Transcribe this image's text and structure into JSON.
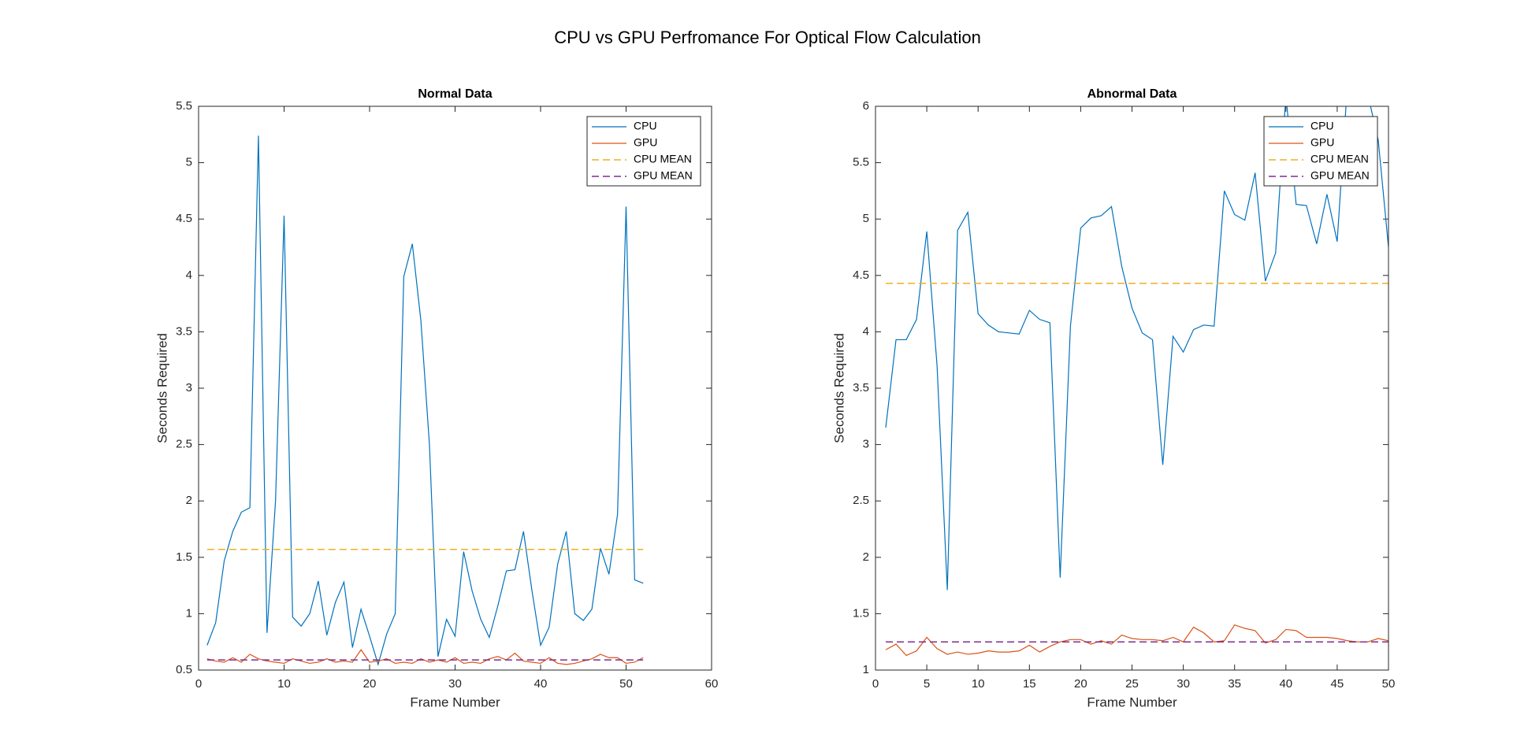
{
  "title": "CPU vs GPU Perfromance For Optical Flow Calculation",
  "chart_data": [
    {
      "type": "line",
      "title": "Normal Data",
      "xlabel": "Frame Number",
      "ylabel": "Seconds Required",
      "x": [
        1,
        2,
        3,
        4,
        5,
        6,
        7,
        8,
        9,
        10,
        11,
        12,
        13,
        14,
        15,
        16,
        17,
        18,
        19,
        20,
        21,
        22,
        23,
        24,
        25,
        26,
        27,
        28,
        29,
        30,
        31,
        32,
        33,
        34,
        35,
        36,
        37,
        38,
        39,
        40,
        41,
        42,
        43,
        44,
        45,
        46,
        47,
        48,
        49,
        50,
        51,
        52
      ],
      "xlim": [
        0,
        60
      ],
      "xticks": [
        0,
        10,
        20,
        30,
        40,
        50,
        60
      ],
      "ylim": [
        0.5,
        5.5
      ],
      "yticks": [
        0.5,
        1,
        1.5,
        2,
        2.5,
        3,
        3.5,
        4,
        4.5,
        5,
        5.5
      ],
      "legend": "upper right",
      "series": [
        {
          "name": "CPU",
          "color": "#0072BD",
          "style": "solid",
          "values": [
            0.72,
            0.92,
            1.47,
            1.73,
            1.9,
            1.94,
            5.24,
            0.83,
            2.0,
            4.53,
            0.97,
            0.89,
            1.0,
            1.29,
            0.81,
            1.1,
            1.28,
            0.7,
            1.04,
            0.8,
            0.55,
            0.82,
            1.0,
            3.99,
            4.28,
            3.6,
            2.5,
            0.62,
            0.95,
            0.8,
            1.55,
            1.2,
            0.95,
            0.79,
            1.07,
            1.38,
            1.39,
            1.73,
            1.2,
            0.72,
            0.88,
            1.44,
            1.73,
            1.0,
            0.94,
            1.04,
            1.58,
            1.35,
            1.88,
            4.61,
            1.3,
            1.27
          ]
        },
        {
          "name": "GPU",
          "color": "#D95319",
          "style": "solid",
          "values": [
            0.6,
            0.58,
            0.57,
            0.61,
            0.57,
            0.64,
            0.6,
            0.58,
            0.57,
            0.56,
            0.6,
            0.58,
            0.56,
            0.57,
            0.6,
            0.57,
            0.58,
            0.57,
            0.68,
            0.57,
            0.58,
            0.6,
            0.56,
            0.57,
            0.56,
            0.6,
            0.57,
            0.59,
            0.57,
            0.61,
            0.56,
            0.57,
            0.56,
            0.6,
            0.62,
            0.59,
            0.65,
            0.58,
            0.57,
            0.56,
            0.61,
            0.56,
            0.55,
            0.56,
            0.58,
            0.6,
            0.64,
            0.61,
            0.61,
            0.56,
            0.57,
            0.61
          ]
        },
        {
          "name": "CPU MEAN",
          "color": "#EDB120",
          "style": "dashed",
          "x": [
            1,
            52
          ],
          "values": [
            1.57,
            1.57
          ]
        },
        {
          "name": "GPU MEAN",
          "color": "#7E2F8E",
          "style": "dashed",
          "x": [
            1,
            52
          ],
          "values": [
            0.59,
            0.59
          ]
        }
      ]
    },
    {
      "type": "line",
      "title": "Abnormal Data",
      "xlabel": "Frame Number",
      "ylabel": "Seconds Required",
      "x": [
        1,
        2,
        3,
        4,
        5,
        6,
        7,
        8,
        9,
        10,
        11,
        12,
        13,
        14,
        15,
        16,
        17,
        18,
        19,
        20,
        21,
        22,
        23,
        24,
        25,
        26,
        27,
        28,
        29,
        30,
        31,
        32,
        33,
        34,
        35,
        36,
        37,
        38,
        39,
        40,
        41,
        42,
        43,
        44,
        45,
        46,
        47,
        48,
        49,
        50
      ],
      "xlim": [
        0,
        50
      ],
      "xticks": [
        0,
        5,
        10,
        15,
        20,
        25,
        30,
        35,
        40,
        45,
        50
      ],
      "ylim": [
        1,
        6
      ],
      "yticks": [
        1,
        1.5,
        2,
        2.5,
        3,
        3.5,
        4,
        4.5,
        5,
        5.5,
        6
      ],
      "legend": "upper right",
      "series": [
        {
          "name": "CPU",
          "color": "#0072BD",
          "style": "solid",
          "values": [
            3.15,
            3.93,
            3.93,
            4.11,
            4.89,
            3.7,
            1.71,
            4.9,
            5.06,
            4.16,
            4.06,
            4.0,
            3.99,
            3.98,
            4.19,
            4.11,
            4.08,
            1.82,
            4.05,
            4.92,
            5.01,
            5.03,
            5.11,
            4.58,
            4.21,
            3.99,
            3.93,
            2.82,
            3.96,
            3.82,
            4.02,
            4.06,
            4.05,
            5.25,
            5.04,
            4.99,
            5.41,
            4.45,
            4.7,
            6.1,
            5.13,
            5.12,
            4.78,
            5.22,
            4.8,
            6.2,
            6.3,
            6.1,
            5.7,
            4.75
          ]
        },
        {
          "name": "GPU",
          "color": "#D95319",
          "style": "solid",
          "values": [
            1.18,
            1.23,
            1.13,
            1.17,
            1.29,
            1.19,
            1.14,
            1.16,
            1.14,
            1.15,
            1.17,
            1.16,
            1.16,
            1.17,
            1.22,
            1.16,
            1.21,
            1.25,
            1.27,
            1.27,
            1.23,
            1.26,
            1.23,
            1.31,
            1.28,
            1.27,
            1.27,
            1.26,
            1.29,
            1.25,
            1.38,
            1.33,
            1.25,
            1.26,
            1.4,
            1.37,
            1.35,
            1.24,
            1.27,
            1.36,
            1.35,
            1.29,
            1.29,
            1.29,
            1.28,
            1.26,
            1.25,
            1.25,
            1.28,
            1.26
          ]
        },
        {
          "name": "CPU MEAN",
          "color": "#EDB120",
          "style": "dashed",
          "x": [
            1,
            50
          ],
          "values": [
            4.43,
            4.43
          ]
        },
        {
          "name": "GPU MEAN",
          "color": "#7E2F8E",
          "style": "dashed",
          "x": [
            1,
            50
          ],
          "values": [
            1.25,
            1.25
          ]
        }
      ]
    }
  ]
}
